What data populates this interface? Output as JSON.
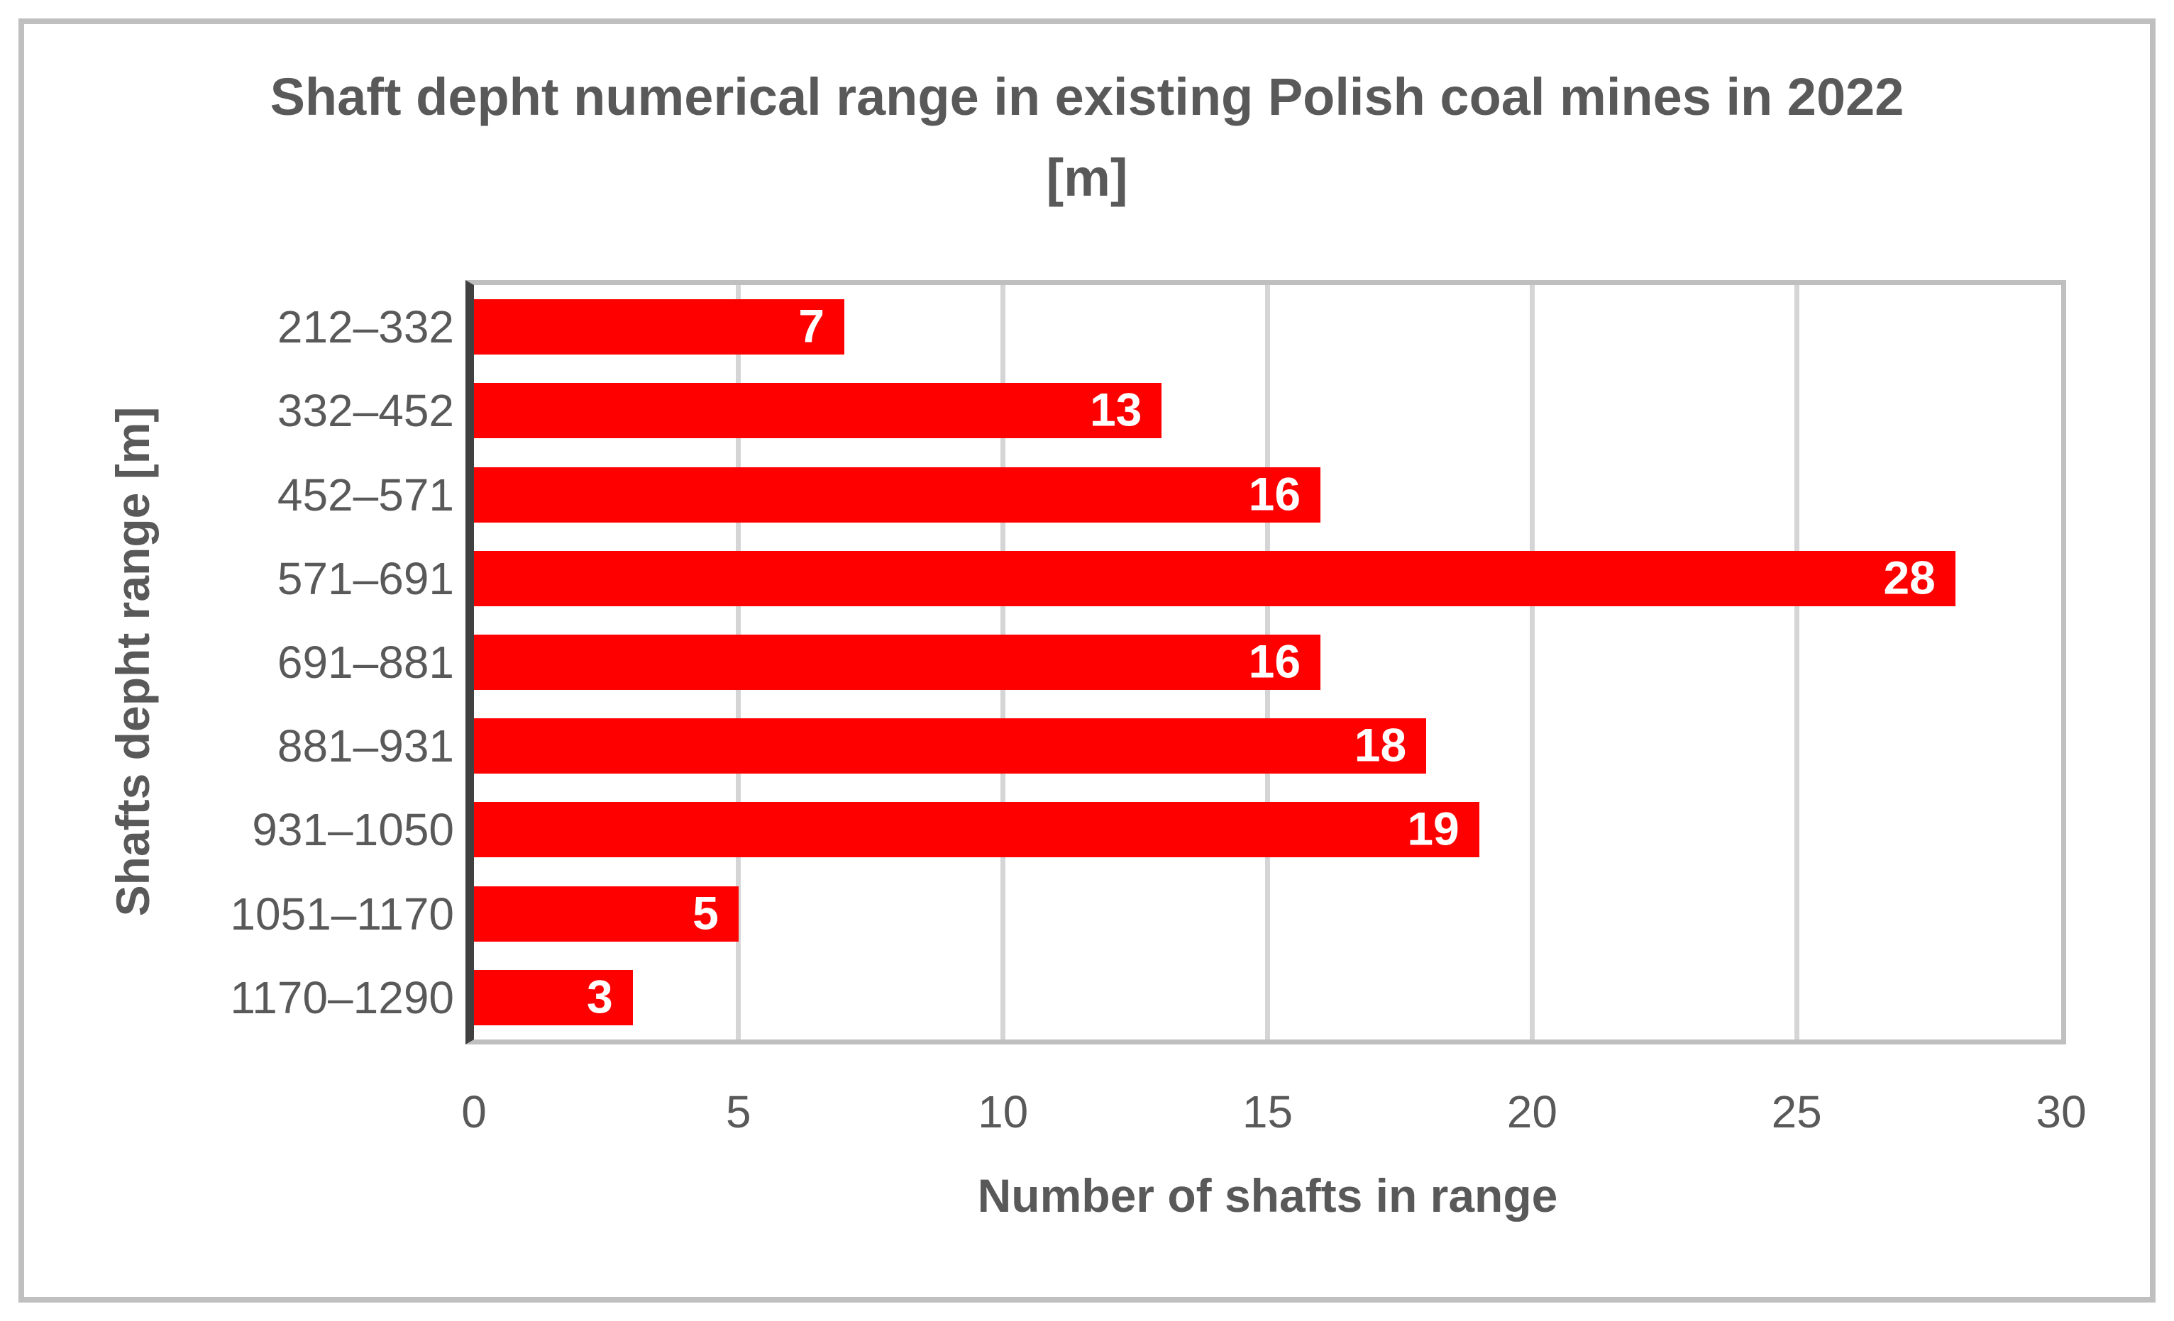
{
  "chart_data": {
    "type": "bar",
    "orientation": "horizontal",
    "title": "Shaft depht numerical range in existing Polish coal mines in 2022 [m]",
    "title_line1": "Shaft depht numerical range in existing Polish coal mines in 2022",
    "title_line2": "[m]",
    "categories": [
      "212–332",
      "332–452",
      "452–571",
      "571–691",
      "691–881",
      "881–931",
      "931–1050",
      "1051–1170",
      "1170–1290"
    ],
    "values": [
      7,
      13,
      16,
      28,
      16,
      18,
      19,
      5,
      3
    ],
    "xlabel": "Number of shafts in range",
    "ylabel": "Shafts depht range [m]",
    "xlim": [
      0,
      30
    ],
    "xticks": [
      0,
      5,
      10,
      15,
      20,
      25,
      30
    ],
    "grid": "vertical-major",
    "legend": "none",
    "data_labels": "inside-end",
    "colors": {
      "bar": "#FF0000",
      "data_label_text": "#FFFFFF",
      "text": "#595959",
      "gridline": "#D5D5D5",
      "plot_frame": "#BFBFBF",
      "axis_line": "#404040",
      "outer_border": "#BFBFBF",
      "background": "#FFFFFF"
    }
  }
}
